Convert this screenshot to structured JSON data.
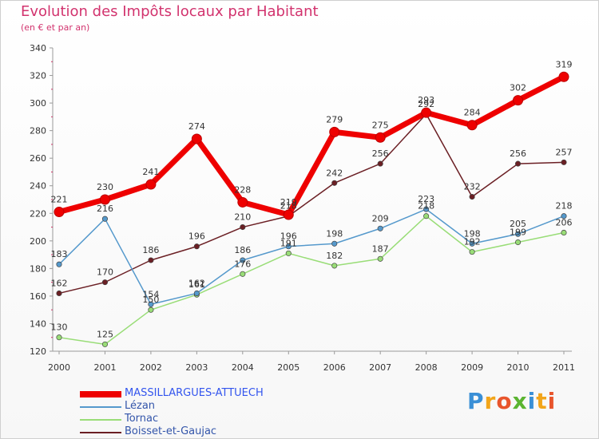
{
  "chart_data": {
    "type": "line",
    "title": "Evolution des Impôts locaux par Habitant",
    "subtitle": "(en € et par an)",
    "xlabel": "",
    "ylabel": "",
    "categories": [
      "2000",
      "2001",
      "2002",
      "2003",
      "2004",
      "2005",
      "2006",
      "2007",
      "2008",
      "2009",
      "2010",
      "2011"
    ],
    "yticks": [
      "120",
      "140",
      "160",
      "180",
      "200",
      "220",
      "240",
      "260",
      "280",
      "300",
      "320",
      "340"
    ],
    "ylim": [
      120,
      340
    ],
    "grid": false,
    "legend_position": "bottom-left",
    "series": [
      {
        "name": "Boisset-et-Gaujac",
        "color": "#6b1f24",
        "values": [
          162,
          170,
          186,
          196,
          210,
          218,
          242,
          256,
          292,
          232,
          256,
          257
        ],
        "labels": [
          "162",
          "170",
          "186",
          "196",
          "210",
          "218",
          "242",
          "256",
          "292",
          "232",
          "256",
          "257"
        ]
      },
      {
        "name": "Tornac",
        "color": "#99dd77",
        "values": [
          130,
          125,
          150,
          161,
          176,
          191,
          182,
          187,
          218,
          192,
          199,
          206
        ],
        "labels": [
          "130",
          "125",
          "150",
          "161",
          "176",
          "191",
          "182",
          "187",
          "218",
          "192",
          "199",
          "206"
        ]
      },
      {
        "name": "Lézan",
        "color": "#5599cc",
        "values": [
          183,
          216,
          154,
          162,
          186,
          196,
          198,
          209,
          223,
          198,
          205,
          218
        ],
        "labels": [
          "183",
          "216",
          "154",
          "162",
          "186",
          "196",
          "198",
          "209",
          "223",
          "198",
          "205",
          "218"
        ]
      },
      {
        "name": "MASSILLARGUES-ATTUECH",
        "color": "#ee0000",
        "values": [
          221,
          230,
          241,
          274,
          228,
          219,
          279,
          275,
          293,
          284,
          302,
          319
        ],
        "labels": [
          "221",
          "230",
          "241",
          "274",
          "228",
          "219",
          "279",
          "275",
          "293",
          "284",
          "302",
          "319"
        ]
      }
    ],
    "legend_order": [
      "MASSILLARGUES-ATTUECH",
      "Lézan",
      "Tornac",
      "Boisset-et-Gaujac"
    ]
  },
  "brand": {
    "letters": [
      "P",
      "r",
      "o",
      "x",
      "i",
      "t",
      "i"
    ],
    "colors": [
      "#3a8fd6",
      "#f2a51a",
      "#e8552c",
      "#5bb431",
      "#3a8fd6",
      "#f2a51a",
      "#e8552c"
    ]
  }
}
